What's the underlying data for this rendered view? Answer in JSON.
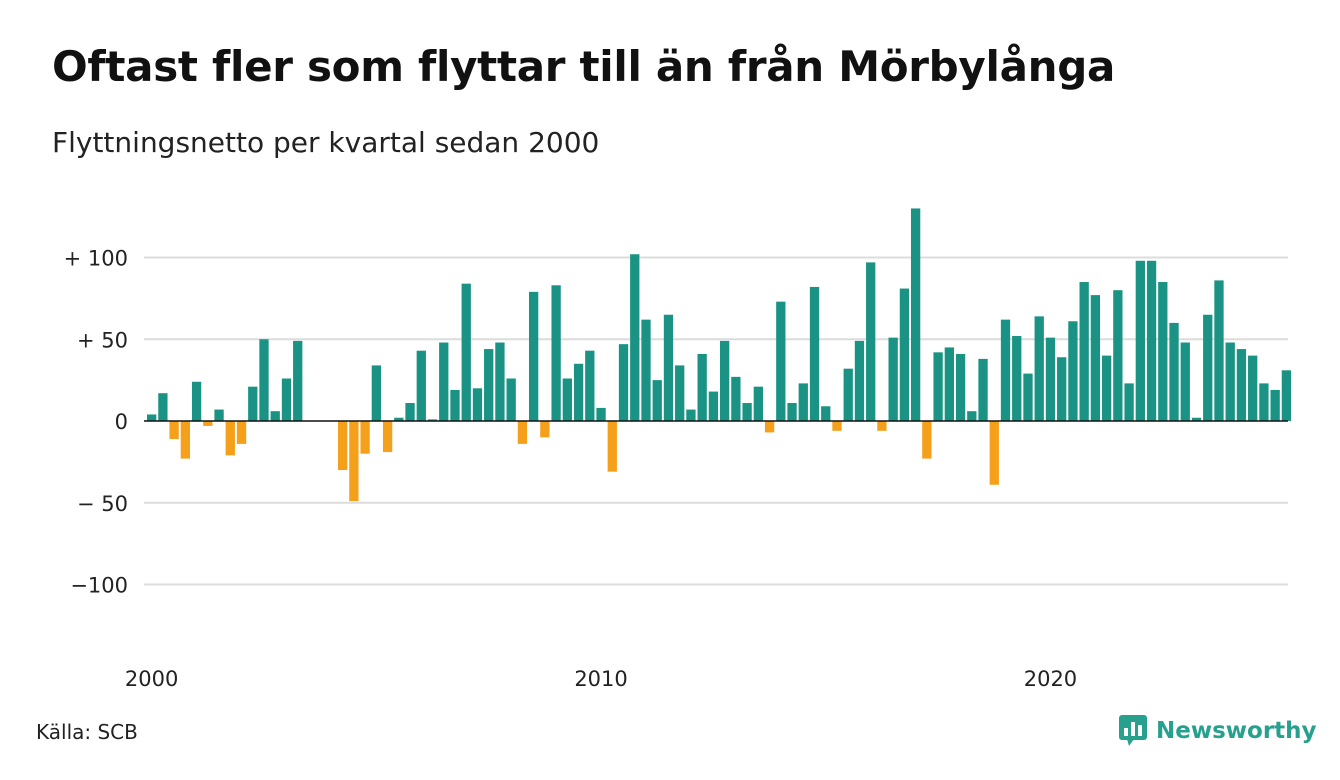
{
  "header": {
    "title": "Oftast fler som flyttar till än från Mörbylånga",
    "subtitle": "Flyttningsnetto per kvartal sedan 2000"
  },
  "footer": {
    "source": "Källa: SCB",
    "brand": "Newsworthy",
    "brand_icon": "newsworthy-logo-icon"
  },
  "colors": {
    "positive": "#1b9384",
    "negative": "#f5a01a",
    "grid": "#dcdcdc",
    "zero_line": "#111111",
    "brand": "#27a08e"
  },
  "chart_data": {
    "type": "bar",
    "x_start": "2000 Q1",
    "y_ticks": [
      100,
      50,
      0,
      -50,
      -100
    ],
    "y_tick_labels": [
      "+ 100",
      "+  50",
      "0",
      "− 50",
      "−100"
    ],
    "ylim": [
      -130,
      130
    ],
    "x_tick_labels": [
      "2000",
      "2010",
      "2020"
    ],
    "x_tick_index": [
      0,
      40,
      80
    ],
    "grid": true,
    "legend": "none",
    "values": [
      4,
      17,
      -11,
      -23,
      24,
      -3,
      7,
      -21,
      -14,
      21,
      50,
      6,
      26,
      49,
      0,
      0,
      0,
      -30,
      -49,
      -20,
      34,
      -19,
      2,
      11,
      43,
      1,
      48,
      19,
      84,
      20,
      44,
      48,
      26,
      -14,
      79,
      -10,
      83,
      26,
      35,
      43,
      8,
      -31,
      47,
      102,
      62,
      25,
      65,
      34,
      7,
      41,
      18,
      49,
      27,
      11,
      21,
      -7,
      73,
      11,
      23,
      82,
      9,
      -6,
      32,
      49,
      97,
      -6,
      51,
      81,
      130,
      -23,
      42,
      45,
      41,
      6,
      38,
      -39,
      62,
      52,
      29,
      64,
      51,
      39,
      61,
      85,
      77,
      40,
      80,
      23,
      98,
      98,
      85,
      60,
      48,
      2,
      65,
      86,
      48,
      44,
      40,
      23,
      19,
      31
    ]
  }
}
